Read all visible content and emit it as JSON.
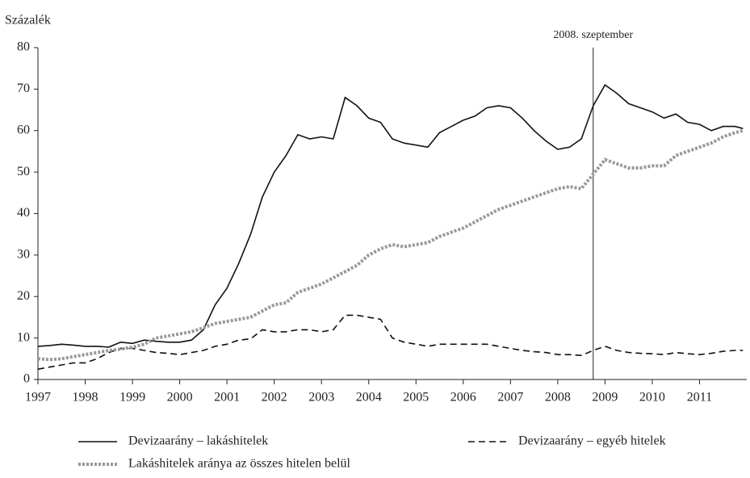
{
  "chart_data": {
    "type": "line",
    "y_label": "Százalék",
    "annotation": {
      "x": 2008.75,
      "label": "2008. szeptember"
    },
    "x": [
      1997,
      1997.25,
      1997.5,
      1997.75,
      1998,
      1998.25,
      1998.5,
      1998.75,
      1999,
      1999.25,
      1999.5,
      1999.75,
      2000,
      2000.25,
      2000.5,
      2000.75,
      2001,
      2001.25,
      2001.5,
      2001.75,
      2002,
      2002.25,
      2002.5,
      2002.75,
      2003,
      2003.25,
      2003.5,
      2003.75,
      2004,
      2004.25,
      2004.5,
      2004.75,
      2005,
      2005.25,
      2005.5,
      2005.75,
      2006,
      2006.25,
      2006.5,
      2006.75,
      2007,
      2007.25,
      2007.5,
      2007.75,
      2008,
      2008.25,
      2008.5,
      2008.75,
      2009,
      2009.25,
      2009.5,
      2009.75,
      2010,
      2010.25,
      2010.5,
      2010.75,
      2011,
      2011.25,
      2011.5,
      2011.75,
      2011.92
    ],
    "series": [
      {
        "name": "Devizaarány – lakáshitelek",
        "color": "#111111",
        "style": "solid",
        "values": [
          8,
          8.2,
          8.5,
          8.3,
          8,
          8,
          7.8,
          9,
          8.7,
          9.5,
          9.2,
          9,
          9,
          9.5,
          12,
          18,
          22,
          28,
          35,
          44,
          50,
          54,
          59,
          58,
          58.5,
          58,
          68,
          66,
          63,
          62,
          58,
          57,
          56.5,
          56,
          59.5,
          61,
          62.5,
          63.5,
          65.5,
          66,
          65.5,
          63,
          60,
          57.5,
          55.5,
          56,
          58,
          66,
          71,
          69,
          66.5,
          65.5,
          64.5,
          63,
          64,
          62,
          61.5,
          60,
          61,
          61,
          60.5
        ]
      },
      {
        "name": "Devizaarány – egyéb hitelek",
        "color": "#111111",
        "style": "dashed",
        "values": [
          2.5,
          3,
          3.5,
          4,
          4,
          5,
          6.5,
          7.5,
          7.5,
          7,
          6.5,
          6.3,
          6,
          6.5,
          7,
          8,
          8.5,
          9.5,
          9.8,
          12,
          11.5,
          11.5,
          12,
          12,
          11.5,
          12,
          15.5,
          15.5,
          15,
          14.5,
          10,
          9,
          8.5,
          8,
          8.5,
          8.5,
          8.5,
          8.5,
          8.5,
          8,
          7.5,
          7,
          6.7,
          6.5,
          6,
          6,
          5.8,
          7,
          8,
          7,
          6.5,
          6.3,
          6.2,
          6,
          6.5,
          6.2,
          6,
          6.3,
          6.8,
          7,
          7
        ]
      },
      {
        "name": "Lakáshitelek aránya az összes hitelen belül",
        "color": "#999999",
        "style": "dotted",
        "values": [
          5,
          4.8,
          5,
          5.5,
          6,
          6.5,
          7,
          7.3,
          7.8,
          8.5,
          10,
          10.5,
          11,
          11.5,
          12.5,
          13.5,
          14,
          14.5,
          15,
          16.5,
          18,
          18.5,
          21,
          22,
          23,
          24.5,
          26,
          27.5,
          30,
          31.5,
          32.5,
          32,
          32.5,
          33,
          34.5,
          35.5,
          36.5,
          38,
          39.5,
          41,
          42,
          43,
          44,
          45,
          46,
          46.5,
          46,
          49.5,
          53,
          52,
          51,
          51,
          51.5,
          51.5,
          54,
          55,
          56,
          57,
          58.5,
          59.5,
          60
        ]
      }
    ],
    "xlim": [
      1997,
      2012
    ],
    "xticks": [
      1997,
      1998,
      1999,
      2000,
      2001,
      2002,
      2003,
      2004,
      2005,
      2006,
      2007,
      2008,
      2009,
      2010,
      2011
    ],
    "ylim": [
      0,
      80
    ],
    "yticks": [
      0,
      10,
      20,
      30,
      40,
      50,
      60,
      70,
      80
    ],
    "grid": false
  }
}
